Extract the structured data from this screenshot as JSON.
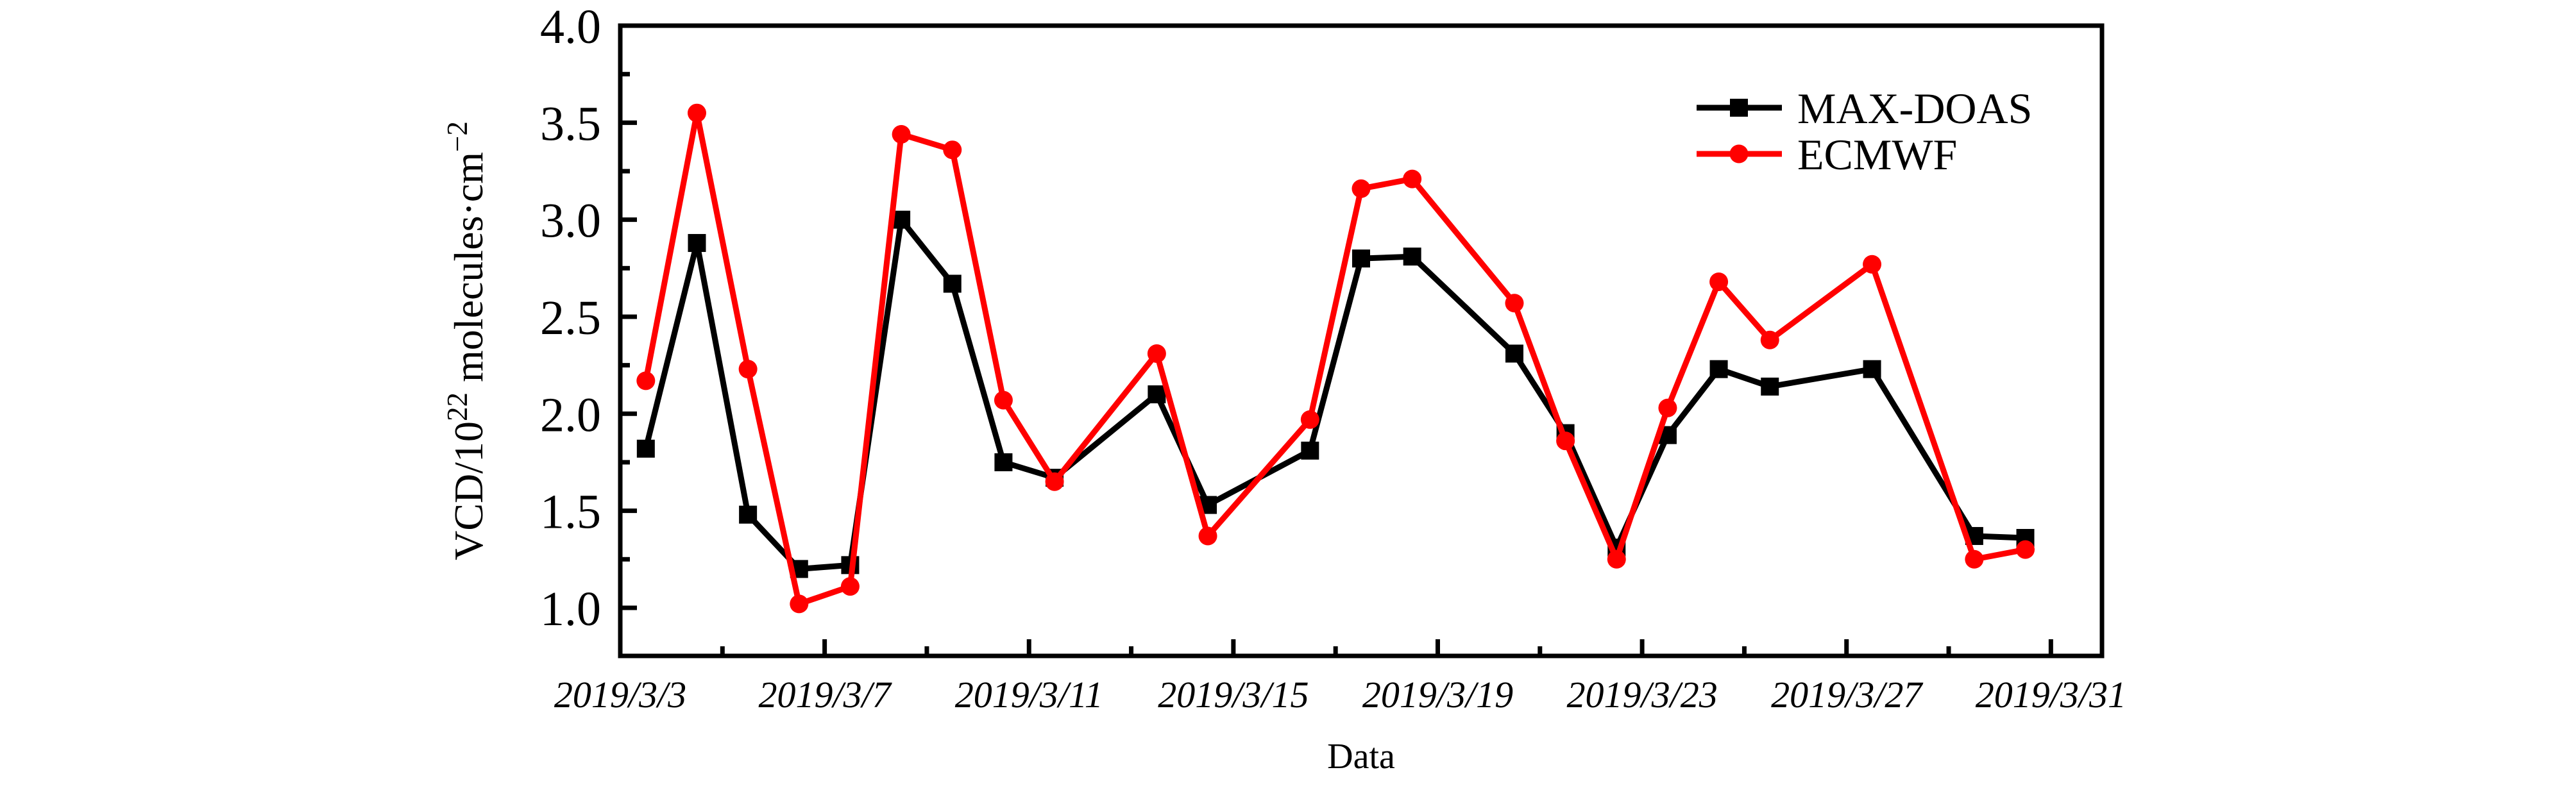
{
  "figure": {
    "background": "#ffffff",
    "frame_color": "#000000"
  },
  "chart_data": {
    "type": "line",
    "title": "",
    "xlabel": "Data",
    "ylabel": "VCD/10²² molecules·cm⁻²",
    "ylabel_parts": [
      {
        "text": "VCD/10",
        "super": false
      },
      {
        "text": "22",
        "super": true
      },
      {
        "text": " molecules·cm",
        "super": false
      },
      {
        "text": "−2",
        "super": true
      }
    ],
    "xlim": [
      3,
      32
    ],
    "ylim": [
      0.75,
      4.0
    ],
    "grid": false,
    "legend_position": "upper-right-inside",
    "x_major_ticks": [
      {
        "value": 3,
        "label": "2019/3/3"
      },
      {
        "value": 7,
        "label": "2019/3/7"
      },
      {
        "value": 11,
        "label": "2019/3/11"
      },
      {
        "value": 15,
        "label": "2019/3/15"
      },
      {
        "value": 19,
        "label": "2019/3/19"
      },
      {
        "value": 23,
        "label": "2019/3/23"
      },
      {
        "value": 27,
        "label": "2019/3/27"
      },
      {
        "value": 31,
        "label": "2019/3/31"
      }
    ],
    "x_minor_ticks": [
      5,
      9,
      13,
      17,
      21,
      25,
      29
    ],
    "y_major_ticks": [
      {
        "value": 1.0,
        "label": "1.0"
      },
      {
        "value": 1.5,
        "label": "1.5"
      },
      {
        "value": 2.0,
        "label": "2.0"
      },
      {
        "value": 2.5,
        "label": "2.5"
      },
      {
        "value": 3.0,
        "label": "3.0"
      },
      {
        "value": 3.5,
        "label": "3.5"
      },
      {
        "value": 4.0,
        "label": "4.0"
      }
    ],
    "y_minor_ticks": [
      1.25,
      1.75,
      2.25,
      2.75,
      3.25,
      3.75
    ],
    "series": [
      {
        "name": "MAX-DOAS",
        "color": "#000000",
        "marker": "square",
        "x": [
          3.5,
          4.5,
          5.5,
          6.5,
          7.5,
          8.5,
          9.5,
          10.5,
          11.5,
          13.5,
          14.5,
          16.5,
          17.5,
          18.5,
          20.5,
          21.5,
          22.5,
          23.5,
          24.5,
          25.5,
          27.5,
          29.5,
          30.5
        ],
        "values": [
          1.82,
          2.88,
          1.48,
          1.2,
          1.22,
          3.0,
          2.67,
          1.75,
          1.67,
          2.1,
          1.53,
          1.81,
          2.8,
          2.81,
          2.31,
          1.9,
          1.31,
          1.89,
          2.23,
          2.14,
          2.23,
          1.37,
          1.36
        ]
      },
      {
        "name": "ECMWF",
        "color": "#ff0000",
        "marker": "circle",
        "x": [
          3.5,
          4.5,
          5.5,
          6.5,
          7.5,
          8.5,
          9.5,
          10.5,
          11.5,
          13.5,
          14.5,
          16.5,
          17.5,
          18.5,
          20.5,
          21.5,
          22.5,
          23.5,
          24.5,
          25.5,
          27.5,
          29.5,
          30.5
        ],
        "values": [
          2.17,
          3.55,
          2.23,
          1.02,
          1.11,
          3.44,
          3.36,
          2.07,
          1.65,
          2.31,
          1.37,
          1.97,
          3.16,
          3.21,
          2.57,
          1.86,
          1.25,
          2.03,
          2.68,
          2.38,
          2.77,
          1.25,
          1.3
        ]
      }
    ]
  }
}
